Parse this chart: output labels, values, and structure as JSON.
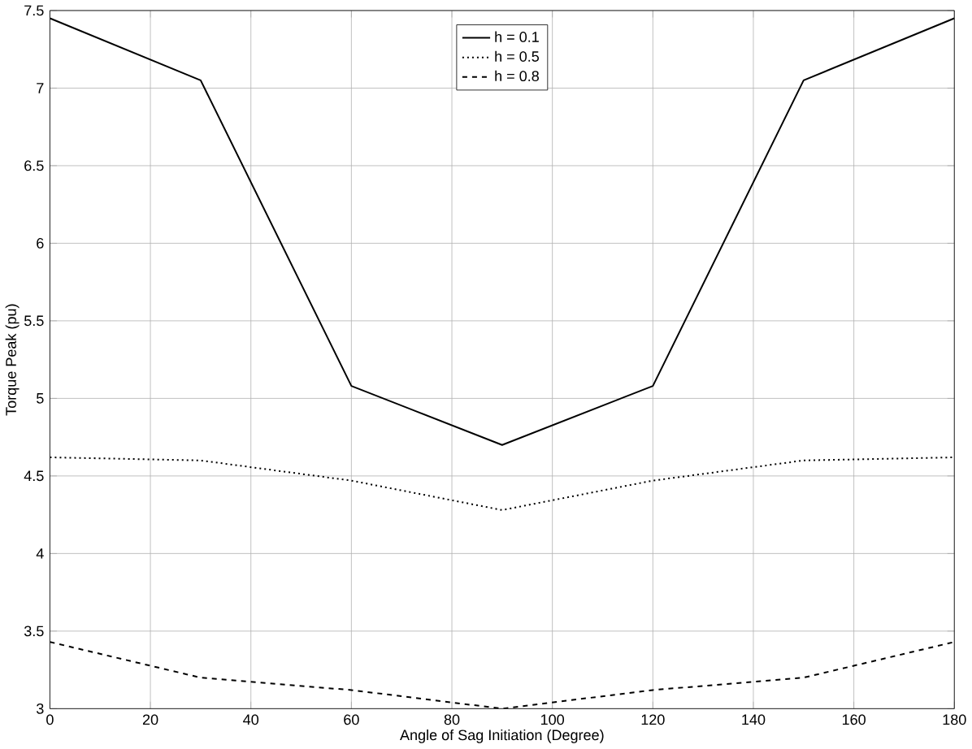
{
  "chart_data": {
    "type": "line",
    "xlabel": "Angle of Sag Initiation (Degree)",
    "ylabel": "Torque Peak (pu)",
    "x": [
      0,
      30,
      60,
      90,
      120,
      150,
      180
    ],
    "series": [
      {
        "name": "h = 0.1",
        "color": "#000000",
        "line_style": "solid",
        "values": [
          7.45,
          7.05,
          5.08,
          4.7,
          5.08,
          7.05,
          7.45
        ]
      },
      {
        "name": "h = 0.5",
        "color": "#000000",
        "line_style": "dotted",
        "values": [
          4.62,
          4.6,
          4.47,
          4.28,
          4.47,
          4.6,
          4.62
        ]
      },
      {
        "name": "h = 0.8",
        "color": "#000000",
        "line_style": "dashed",
        "values": [
          3.43,
          3.2,
          3.12,
          3.0,
          3.12,
          3.2,
          3.43
        ]
      }
    ],
    "xlim": [
      0,
      180
    ],
    "xticks": [
      0,
      20,
      40,
      60,
      80,
      100,
      120,
      140,
      160,
      180
    ],
    "ylim": [
      3,
      7.5
    ],
    "yticks": [
      3,
      3.5,
      4,
      4.5,
      5,
      5.5,
      6,
      6.5,
      7,
      7.5
    ],
    "grid": true,
    "legend": "top",
    "marker": "none"
  }
}
